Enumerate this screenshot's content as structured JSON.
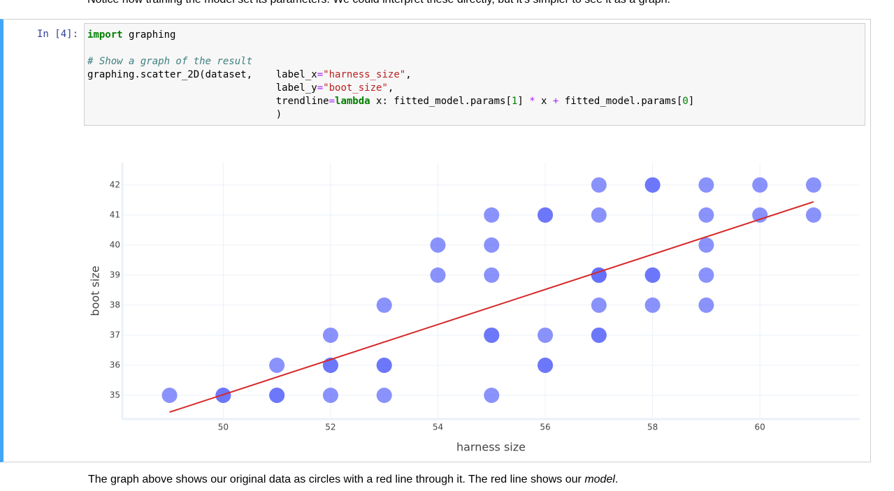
{
  "intro": "Notice how training the model set its parameters. We could interpret these directly, but it's simpler to see it as a graph.",
  "cell": {
    "prompt": "In [4]:",
    "code": [
      [
        {
          "text": "import",
          "color": "#008000",
          "bold": true
        },
        {
          "text": " graphing",
          "color": "#000000"
        }
      ],
      [],
      [
        {
          "text": "# Show a graph of the result",
          "color": "#408080",
          "italic": true
        }
      ],
      [
        {
          "text": "graphing.scatter_2D(dataset,    label_x",
          "color": "#000000"
        },
        {
          "text": "=",
          "color": "#aa22ff"
        },
        {
          "text": "\"harness_size\"",
          "color": "#ba2121"
        },
        {
          "text": ",",
          "color": "#000000"
        }
      ],
      [
        {
          "text": "                                label_y",
          "color": "#000000"
        },
        {
          "text": "=",
          "color": "#aa22ff"
        },
        {
          "text": "\"boot_size\"",
          "color": "#ba2121"
        },
        {
          "text": ",",
          "color": "#000000"
        }
      ],
      [
        {
          "text": "                                trendline",
          "color": "#000000"
        },
        {
          "text": "=",
          "color": "#aa22ff"
        },
        {
          "text": "lambda",
          "color": "#008000",
          "bold": true
        },
        {
          "text": " x: fitted_model.params[",
          "color": "#000000"
        },
        {
          "text": "1",
          "color": "#008000"
        },
        {
          "text": "] ",
          "color": "#000000"
        },
        {
          "text": "*",
          "color": "#aa22ff"
        },
        {
          "text": " x ",
          "color": "#000000"
        },
        {
          "text": "+",
          "color": "#aa22ff"
        },
        {
          "text": " fitted_model.params[",
          "color": "#000000"
        },
        {
          "text": "0",
          "color": "#008000"
        },
        {
          "text": "]",
          "color": "#000000"
        }
      ],
      [
        {
          "text": "                                )",
          "color": "#000000"
        }
      ]
    ]
  },
  "chart_data": {
    "type": "scatter",
    "xlabel": "harness size",
    "ylabel": "boot size",
    "x": [
      49,
      50,
      50,
      51,
      51,
      51,
      52,
      52,
      52,
      52,
      53,
      53,
      53,
      53,
      54,
      54,
      55,
      55,
      55,
      55,
      55,
      55,
      56,
      56,
      56,
      56,
      56,
      57,
      57,
      57,
      57,
      57,
      57,
      57,
      57,
      58,
      58,
      58,
      58,
      58,
      59,
      59,
      59,
      59,
      59,
      60,
      60,
      61,
      61
    ],
    "values": [
      35,
      35,
      35,
      36,
      35,
      35,
      37,
      36,
      36,
      35,
      38,
      36,
      36,
      35,
      40,
      39,
      41,
      40,
      39,
      37,
      37,
      35,
      41,
      41,
      37,
      36,
      36,
      42,
      41,
      39,
      39,
      38,
      37,
      37,
      39,
      42,
      42,
      39,
      39,
      38,
      42,
      41,
      40,
      39,
      38,
      42,
      41,
      42,
      41
    ],
    "color": "#636efa",
    "opacity": 0.75,
    "trendline": {
      "x": [
        49,
        61
      ],
      "values": [
        34.44,
        41.44
      ],
      "color": "#d62728"
    },
    "xlim": [
      48.12,
      61.86
    ],
    "ylim": [
      34.21,
      42.74
    ],
    "xticks": [
      50,
      52,
      54,
      56,
      58,
      60
    ],
    "yticks": [
      35,
      36,
      37,
      38,
      39,
      40,
      41,
      42
    ],
    "grid": true
  },
  "caption": [
    {
      "text": "The graph above shows our original data as circles with a red line through it. The red line shows our "
    },
    {
      "text": "model",
      "italic": true
    },
    {
      "text": "."
    }
  ]
}
